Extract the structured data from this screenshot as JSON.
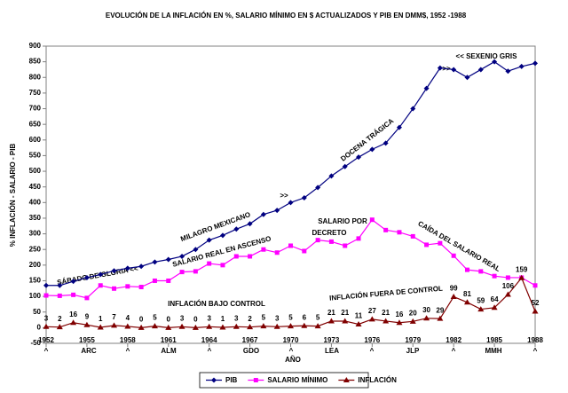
{
  "chart_data": {
    "type": "line",
    "title": "EVOLUCIÓN DE LA INFLACIÓN EN %, SALARIO MÍNIMO EN $ ACTUALIZADOS Y PIB EN DMM$, 1952 -1988",
    "y_label": "% INFLACIÓN - SALARIO - PIB",
    "x_label": "AÑO",
    "x": [
      1952,
      1953,
      1954,
      1955,
      1956,
      1957,
      1958,
      1959,
      1960,
      1961,
      1962,
      1963,
      1964,
      1965,
      1966,
      1967,
      1968,
      1969,
      1970,
      1971,
      1972,
      1973,
      1974,
      1975,
      1976,
      1977,
      1978,
      1979,
      1980,
      1981,
      1982,
      1983,
      1984,
      1985,
      1986,
      1987,
      1988
    ],
    "xlim": [
      1952,
      1988
    ],
    "xticks": [
      1952,
      1955,
      1958,
      1961,
      1964,
      1967,
      1970,
      1973,
      1976,
      1979,
      1982,
      1985,
      1988
    ],
    "ylim": [
      -50,
      900
    ],
    "yticks": [
      -50,
      0,
      50,
      100,
      150,
      200,
      250,
      300,
      350,
      400,
      450,
      500,
      550,
      600,
      650,
      700,
      750,
      800,
      850,
      900
    ],
    "grid": false,
    "legend": "bottom",
    "series": [
      {
        "name": "PIB",
        "color": "#000080",
        "marker": "diamond",
        "values": [
          135,
          135,
          148,
          160,
          170,
          182,
          190,
          196,
          210,
          218,
          228,
          250,
          280,
          295,
          315,
          332,
          362,
          375,
          400,
          415,
          448,
          485,
          515,
          545,
          570,
          590,
          640,
          700,
          765,
          830,
          825,
          800,
          825,
          850,
          820,
          835,
          845
        ]
      },
      {
        "name": "SALARIO MÍNIMO",
        "color": "#ff00ff",
        "marker": "square",
        "values": [
          103,
          102,
          105,
          95,
          135,
          125,
          132,
          130,
          150,
          150,
          178,
          180,
          205,
          200,
          228,
          228,
          250,
          240,
          262,
          245,
          280,
          275,
          262,
          285,
          345,
          312,
          305,
          292,
          265,
          270,
          230,
          185,
          180,
          165,
          160,
          160,
          135
        ]
      },
      {
        "name": "INFLACIÓN",
        "color": "#800000",
        "marker": "triangle",
        "values": [
          3,
          2,
          16,
          9,
          1,
          7,
          4,
          0,
          5,
          0,
          3,
          0,
          3,
          1,
          3,
          2,
          5,
          3,
          5,
          6,
          5,
          21,
          21,
          11,
          27,
          21,
          16,
          20,
          30,
          29,
          99,
          81,
          59,
          64,
          106,
          159,
          52
        ]
      }
    ],
    "presidents": [
      "ARC",
      "ALM",
      "GDO",
      "LEA",
      "JLP",
      "MMH"
    ],
    "caret": "^",
    "annotations": [
      "SÁBADO DE GLORIA <<",
      "MILAGRO MEXICANO",
      "DOCENA TRÁGICA",
      "<< SEXENIO GRIS",
      ">>",
      ">>",
      "SALARIO REAL EN ASCENSO",
      "SALARIO POR",
      "DECRETO",
      "CAÍDA DEL SALARIO REAL",
      "INFLACIÓN BAJO CONTROL",
      "INFLACIÓN FUERA DE CONTROL"
    ]
  }
}
